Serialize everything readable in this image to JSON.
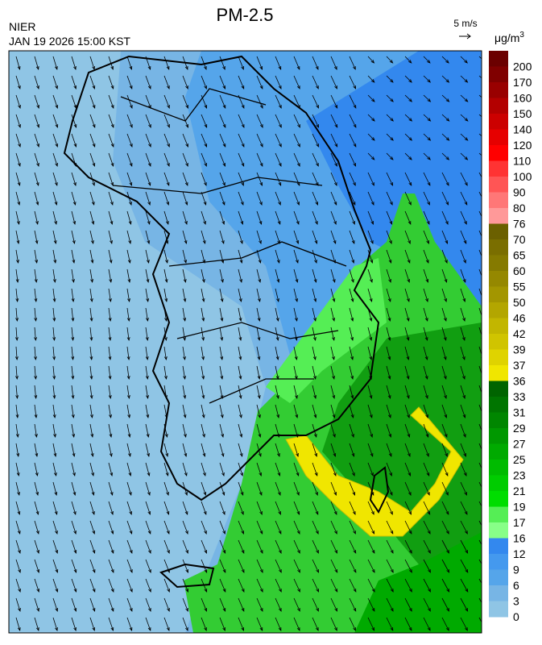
{
  "header": {
    "title": "PM-2.5",
    "source": "NIER",
    "time": "JAN 19 2026 15:00 KST",
    "wind_scale": "5 m/s"
  },
  "legend": {
    "unit": "μg/m",
    "unit_sup": "3",
    "levels": [
      200,
      170,
      160,
      150,
      140,
      120,
      110,
      100,
      90,
      80,
      76,
      70,
      65,
      60,
      55,
      50,
      46,
      42,
      39,
      37,
      36,
      33,
      31,
      29,
      27,
      25,
      23,
      21,
      19,
      17,
      16,
      12,
      9,
      6,
      3,
      0
    ],
    "colors": [
      "#6b0000",
      "#800000",
      "#990000",
      "#b30000",
      "#cc0000",
      "#e60000",
      "#ff0000",
      "#ff3333",
      "#ff5555",
      "#ff7777",
      "#ff9999",
      "#6b6000",
      "#7a6e00",
      "#857a00",
      "#958800",
      "#a39600",
      "#b3a600",
      "#c2b600",
      "#d0c400",
      "#dfd300",
      "#f0e600",
      "#006400",
      "#007500",
      "#008600",
      "#009800",
      "#00aa00",
      "#00bb00",
      "#00cc00",
      "#00dd00",
      "#55ee55",
      "#88ff88",
      "#3388ee",
      "#4499ee",
      "#55a5ea",
      "#77b5e5",
      "#8fc5e5"
    ]
  }
}
